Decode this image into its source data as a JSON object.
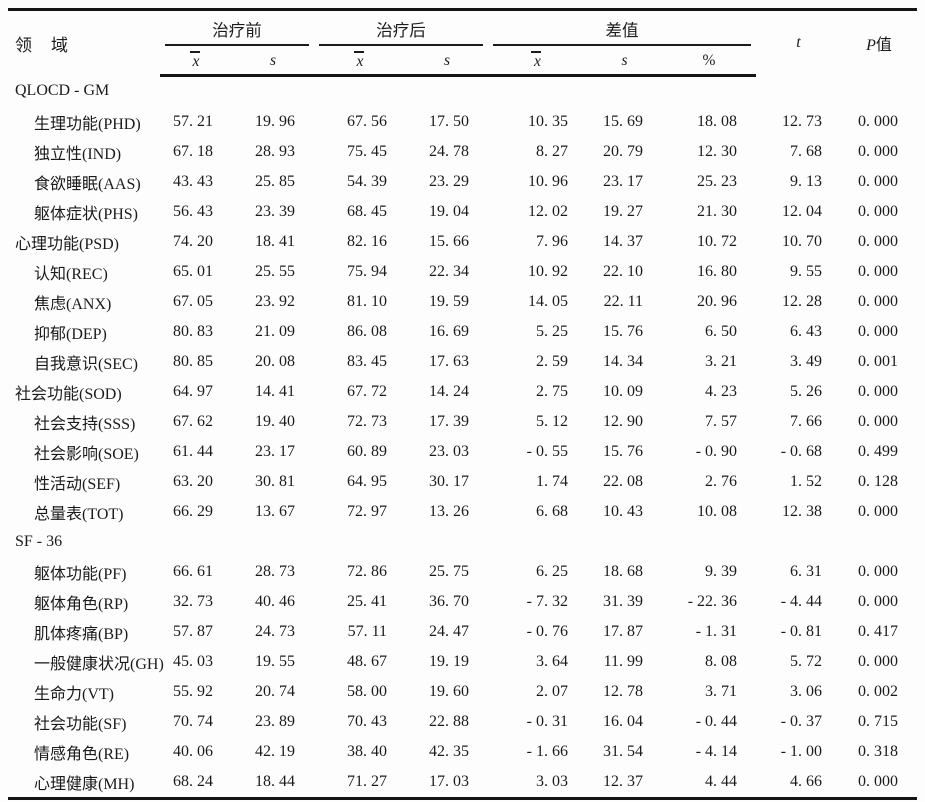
{
  "colors": {
    "background": "#fdfdfd",
    "ink": "#1b1b1b",
    "rule": "#151515"
  },
  "table": {
    "header": {
      "domain": "领　域",
      "groups": [
        {
          "label": "治疗前"
        },
        {
          "label": "治疗后"
        },
        {
          "label": "差值"
        }
      ],
      "cols": {
        "xbar": "x",
        "s": "s",
        "pct": "%"
      },
      "t": "t",
      "p_italic": "P",
      "p_cn": "值"
    },
    "rows": [
      {
        "type": "section",
        "indent": 0,
        "label": "QLOCD - GM"
      },
      {
        "type": "data",
        "indent": 1,
        "label": "生理功能(PHD)",
        "values": [
          "57.21",
          "19.96",
          "67.56",
          "17.50",
          "10.35",
          "15.69",
          "18.08",
          "12.73",
          "0.000"
        ]
      },
      {
        "type": "data",
        "indent": 1,
        "label": "独立性(IND)",
        "values": [
          "67.18",
          "28.93",
          "75.45",
          "24.78",
          "8.27",
          "20.79",
          "12.30",
          "7.68",
          "0.000"
        ]
      },
      {
        "type": "data",
        "indent": 1,
        "label": "食欲睡眠(AAS)",
        "values": [
          "43.43",
          "25.85",
          "54.39",
          "23.29",
          "10.96",
          "23.17",
          "25.23",
          "9.13",
          "0.000"
        ]
      },
      {
        "type": "data",
        "indent": 1,
        "label": "躯体症状(PHS)",
        "values": [
          "56.43",
          "23.39",
          "68.45",
          "19.04",
          "12.02",
          "19.27",
          "21.30",
          "12.04",
          "0.000"
        ]
      },
      {
        "type": "data",
        "indent": 0,
        "label": "心理功能(PSD)",
        "values": [
          "74.20",
          "18.41",
          "82.16",
          "15.66",
          "7.96",
          "14.37",
          "10.72",
          "10.70",
          "0.000"
        ]
      },
      {
        "type": "data",
        "indent": 1,
        "label": "认知(REC)",
        "values": [
          "65.01",
          "25.55",
          "75.94",
          "22.34",
          "10.92",
          "22.10",
          "16.80",
          "9.55",
          "0.000"
        ]
      },
      {
        "type": "data",
        "indent": 1,
        "label": "焦虑(ANX)",
        "values": [
          "67.05",
          "23.92",
          "81.10",
          "19.59",
          "14.05",
          "22.11",
          "20.96",
          "12.28",
          "0.000"
        ]
      },
      {
        "type": "data",
        "indent": 1,
        "label": "抑郁(DEP)",
        "values": [
          "80.83",
          "21.09",
          "86.08",
          "16.69",
          "5.25",
          "15.76",
          "6.50",
          "6.43",
          "0.000"
        ]
      },
      {
        "type": "data",
        "indent": 1,
        "label": "自我意识(SEC)",
        "values": [
          "80.85",
          "20.08",
          "83.45",
          "17.63",
          "2.59",
          "14.34",
          "3.21",
          "3.49",
          "0.001"
        ]
      },
      {
        "type": "data",
        "indent": 0,
        "label": "社会功能(SOD)",
        "values": [
          "64.97",
          "14.41",
          "67.72",
          "14.24",
          "2.75",
          "10.09",
          "4.23",
          "5.26",
          "0.000"
        ]
      },
      {
        "type": "data",
        "indent": 1,
        "label": "社会支持(SSS)",
        "values": [
          "67.62",
          "19.40",
          "72.73",
          "17.39",
          "5.12",
          "12.90",
          "7.57",
          "7.66",
          "0.000"
        ]
      },
      {
        "type": "data",
        "indent": 1,
        "label": "社会影响(SOE)",
        "values": [
          "61.44",
          "23.17",
          "60.89",
          "23.03",
          "-0.55",
          "15.76",
          "-0.90",
          "-0.68",
          "0.499"
        ]
      },
      {
        "type": "data",
        "indent": 1,
        "label": "性活动(SEF)",
        "values": [
          "63.20",
          "30.81",
          "64.95",
          "30.17",
          "1.74",
          "22.08",
          "2.76",
          "1.52",
          "0.128"
        ]
      },
      {
        "type": "data",
        "indent": 1,
        "label": "总量表(TOT)",
        "values": [
          "66.29",
          "13.67",
          "72.97",
          "13.26",
          "6.68",
          "10.43",
          "10.08",
          "12.38",
          "0.000"
        ]
      },
      {
        "type": "section",
        "indent": 0,
        "label": "SF - 36"
      },
      {
        "type": "data",
        "indent": 1,
        "label": "躯体功能(PF)",
        "values": [
          "66.61",
          "28.73",
          "72.86",
          "25.75",
          "6.25",
          "18.68",
          "9.39",
          "6.31",
          "0.000"
        ]
      },
      {
        "type": "data",
        "indent": 1,
        "label": "躯体角色(RP)",
        "values": [
          "32.73",
          "40.46",
          "25.41",
          "36.70",
          "-7.32",
          "31.39",
          "-22.36",
          "-4.44",
          "0.000"
        ]
      },
      {
        "type": "data",
        "indent": 1,
        "label": "肌体疼痛(BP)",
        "values": [
          "57.87",
          "24.73",
          "57.11",
          "24.47",
          "-0.76",
          "17.87",
          "-1.31",
          "-0.81",
          "0.417"
        ]
      },
      {
        "type": "data",
        "indent": 1,
        "label": "一般健康状况(GH)",
        "values": [
          "45.03",
          "19.55",
          "48.67",
          "19.19",
          "3.64",
          "11.99",
          "8.08",
          "5.72",
          "0.000"
        ]
      },
      {
        "type": "data",
        "indent": 1,
        "label": "生命力(VT)",
        "values": [
          "55.92",
          "20.74",
          "58.00",
          "19.60",
          "2.07",
          "12.78",
          "3.71",
          "3.06",
          "0.002"
        ]
      },
      {
        "type": "data",
        "indent": 1,
        "label": "社会功能(SF)",
        "values": [
          "70.74",
          "23.89",
          "70.43",
          "22.88",
          "-0.31",
          "16.04",
          "-0.44",
          "-0.37",
          "0.715"
        ]
      },
      {
        "type": "data",
        "indent": 1,
        "label": "情感角色(RE)",
        "values": [
          "40.06",
          "42.19",
          "38.40",
          "42.35",
          "-1.66",
          "31.54",
          "-4.14",
          "-1.00",
          "0.318"
        ]
      },
      {
        "type": "data",
        "indent": 1,
        "label": "心理健康(MH)",
        "values": [
          "68.24",
          "18.44",
          "71.27",
          "17.03",
          "3.03",
          "12.37",
          "4.44",
          "4.66",
          "0.000"
        ]
      }
    ]
  }
}
